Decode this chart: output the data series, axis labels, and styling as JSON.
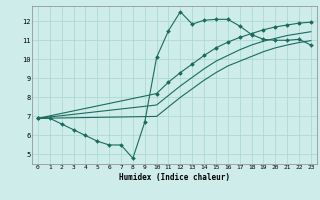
{
  "xlabel": "Humidex (Indice chaleur)",
  "bg_color": "#ceecea",
  "grid_color": "#aed8d4",
  "line_color": "#1a6b5e",
  "xlim": [
    -0.5,
    23.5
  ],
  "ylim": [
    4.5,
    12.8
  ],
  "yticks": [
    5,
    6,
    7,
    8,
    9,
    10,
    11,
    12
  ],
  "xticks": [
    0,
    1,
    2,
    3,
    4,
    5,
    6,
    7,
    8,
    9,
    10,
    11,
    12,
    13,
    14,
    15,
    16,
    17,
    18,
    19,
    20,
    21,
    22,
    23
  ],
  "line1_x": [
    0,
    1,
    2,
    3,
    4,
    5,
    6,
    7,
    8,
    9,
    10,
    11,
    12,
    13,
    14,
    15,
    16,
    17,
    18,
    19,
    20,
    21,
    22,
    23
  ],
  "line1_y": [
    6.9,
    6.9,
    6.6,
    6.3,
    6.0,
    5.7,
    5.5,
    5.5,
    4.8,
    6.7,
    10.1,
    11.5,
    12.5,
    11.85,
    12.05,
    12.1,
    12.1,
    11.75,
    11.3,
    11.05,
    11.0,
    11.0,
    11.05,
    10.75
  ],
  "line2_x": [
    0,
    10,
    11,
    12,
    13,
    14,
    15,
    16,
    17,
    18,
    19,
    20,
    21,
    22,
    23
  ],
  "line2_y": [
    6.9,
    8.2,
    8.8,
    9.3,
    9.75,
    10.2,
    10.6,
    10.9,
    11.15,
    11.35,
    11.55,
    11.7,
    11.8,
    11.9,
    11.95
  ],
  "line3_x": [
    0,
    10,
    11,
    12,
    13,
    14,
    15,
    16,
    17,
    18,
    19,
    20,
    21,
    22,
    23
  ],
  "line3_y": [
    6.9,
    7.6,
    8.1,
    8.6,
    9.05,
    9.5,
    9.9,
    10.2,
    10.5,
    10.75,
    10.95,
    11.1,
    11.25,
    11.35,
    11.45
  ],
  "line4_x": [
    0,
    10,
    11,
    12,
    13,
    14,
    15,
    16,
    17,
    18,
    19,
    20,
    21,
    22,
    23
  ],
  "line4_y": [
    6.9,
    7.0,
    7.5,
    8.0,
    8.45,
    8.9,
    9.3,
    9.65,
    9.9,
    10.15,
    10.4,
    10.6,
    10.75,
    10.88,
    10.98
  ]
}
